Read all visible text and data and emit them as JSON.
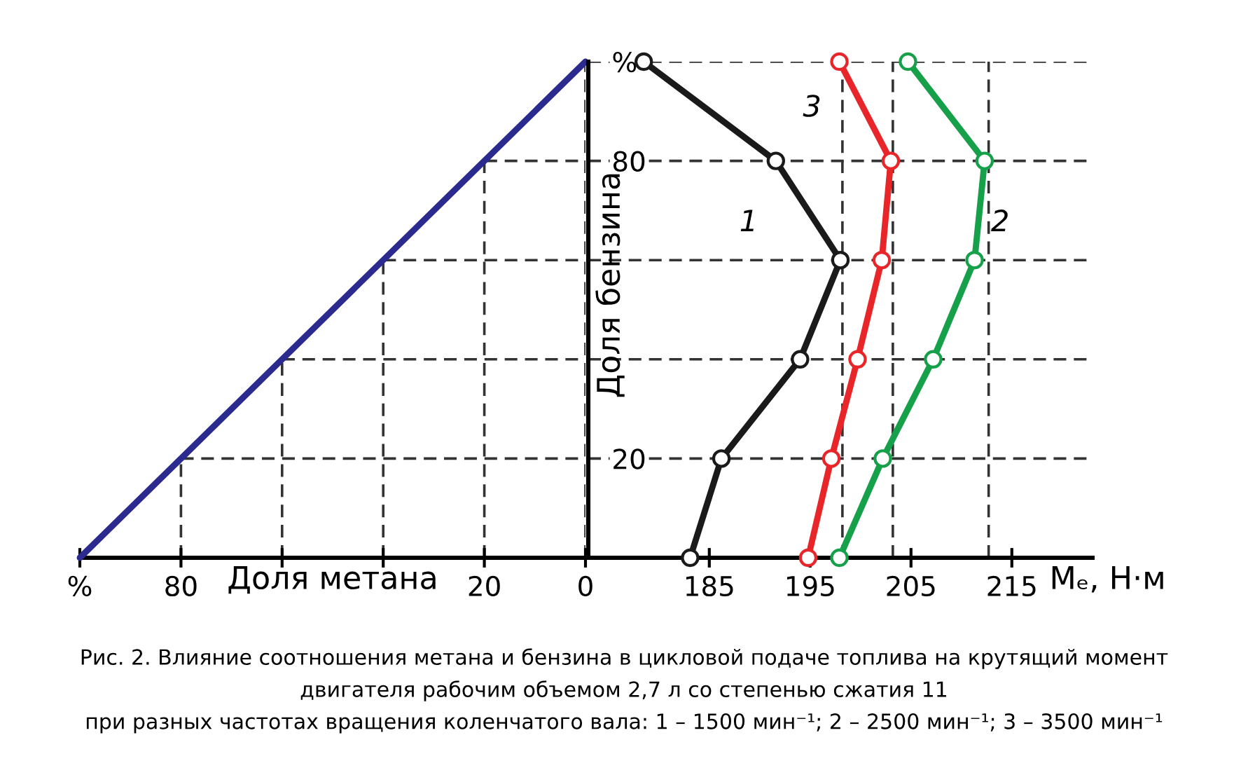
{
  "chart_data": [
    {
      "type": "line",
      "xlabel": "Доля метана",
      "x": [
        100,
        0
      ],
      "values": [
        0,
        100
      ],
      "color": "#2b2a8f",
      "xlim": [
        100,
        0
      ],
      "ylim": [
        0,
        100
      ],
      "xticks": [
        {
          "value": 100,
          "label": "%"
        },
        80,
        {
          "value": 60,
          "label": null
        },
        {
          "value": 40,
          "label": null
        },
        20,
        0
      ],
      "yticks": [
        0,
        20,
        40,
        60,
        80,
        100
      ],
      "tick_labels": "x",
      "grid": true
    },
    {
      "type": "line",
      "ylabel": "Доля бензина",
      "xlabel": "Mₑ, Н·м",
      "marker": "circle",
      "xlim": [
        173,
        223
      ],
      "ylim": [
        0,
        100
      ],
      "xticks": [
        185,
        195,
        205,
        215
      ],
      "yticks": [
        {
          "value": 20,
          "label": "20"
        },
        {
          "value": 40,
          "label": null
        },
        {
          "value": 60,
          "label": null
        },
        {
          "value": 80,
          "label": "80"
        },
        {
          "value": 100,
          "label": "%"
        }
      ],
      "grid": "y",
      "series": [
        {
          "color": "#1a1a1a",
          "x": [
            183.1,
            186.2,
            194.0,
            198.0,
            191.6,
            178.5
          ],
          "values": [
            0,
            20,
            40,
            60,
            80,
            100
          ]
        },
        {
          "color": "#17a04a",
          "x": [
            197.9,
            202.2,
            207.2,
            211.3,
            212.3,
            204.7
          ],
          "values": [
            0,
            20,
            40,
            60,
            80,
            100
          ]
        },
        {
          "color": "#e8262a",
          "x": [
            194.8,
            197.1,
            199.7,
            202.1,
            203.0,
            197.9
          ],
          "values": [
            0,
            20,
            40,
            60,
            80,
            100
          ]
        }
      ],
      "ref_lines": [
        {
          "axis": "x",
          "value": 198.2,
          "line_style": "dashed",
          "color": "#333333"
        },
        {
          "axis": "x",
          "value": 203.2,
          "line_style": "dashed",
          "color": "#333333"
        },
        {
          "axis": "x",
          "value": 212.7,
          "line_style": "dashed",
          "color": "#333333"
        }
      ],
      "annotations": [
        {
          "text": "1",
          "x": 191.6,
          "y": 80
        },
        {
          "text": "2",
          "x": 212.3,
          "y": 80
        },
        {
          "text": "3",
          "x": 197.9,
          "y": 100
        },
        "Рис. 2. Влияние соотношения метана и бензина в цикловой подаче топлива на крутящий момент",
        "двигателя рабочим объемом 2,7 л со степенью сжатия 11",
        "при разных частотах вращения коленчатого вала: 1 – 1500 мин⁻¹; 2 – 2500 мин⁻¹; 3 – 3500 мин⁻¹"
      ]
    }
  ]
}
